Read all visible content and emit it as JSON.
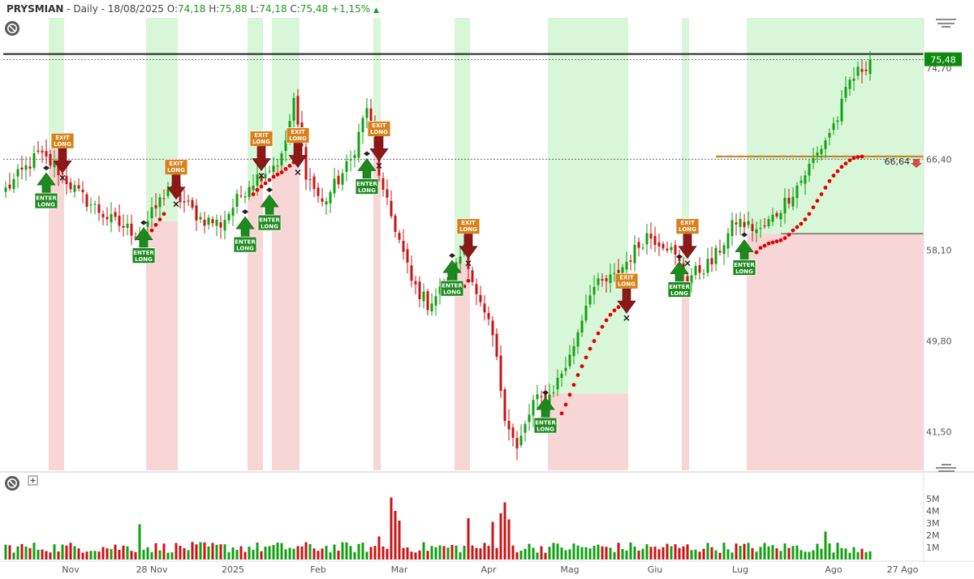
{
  "header": {
    "symbol": "PRYSMIAN",
    "timeframe": "- Daily - 18/08/2025",
    "open_label": "O:",
    "open": "74,18",
    "high_label": "H:",
    "high": "75,88",
    "low_label": "L:",
    "low": "74,18",
    "close_label": "C:",
    "close": "75,48",
    "change": "+1,15%"
  },
  "icons": {
    "main_toggle": "no-entry-icon",
    "menu": "hamburger-menu-icon",
    "pane_resize": "resize-handle-icon",
    "volume_toggle": "no-entry-icon",
    "volume_add": "plus-box-icon",
    "stop_arrow": "down-arrow-icon"
  },
  "colors": {
    "up": "#12a012",
    "down": "#c81414",
    "green_zone": "#d8f6d8",
    "red_zone": "#f9d6d6",
    "enter_long": "#1e8a1e",
    "exit_long": "#8c1818",
    "exit_label": "#d9801a",
    "stop_dot": "#e00000",
    "price_tag": "#0e8a0e"
  },
  "price_axis": {
    "ticks": [
      "74,70",
      "66,40",
      "58,10",
      "49,80",
      "41,50"
    ],
    "last_price_tag": "75,48",
    "stop_level_tag": "66,64"
  },
  "volume_axis": {
    "ticks": [
      "5M",
      "4M",
      "3M",
      "2M",
      "1M"
    ]
  },
  "time_axis": {
    "labels": [
      "Nov",
      "28 Nov",
      "2025",
      "Feb",
      "Mar",
      "Apr",
      "Mag",
      "Giu",
      "Lug",
      "Ago",
      "27 Ago"
    ]
  },
  "signals": {
    "enter_text_1": "ENTER",
    "enter_text_2": "LONG",
    "exit_text_1": "EXIT",
    "exit_text_2": "LONG"
  },
  "chart_data": {
    "type": "candlestick",
    "ylim": [
      38.0,
      79.3
    ],
    "volume_ylim": [
      0,
      6.0
    ],
    "volume_unit": "M",
    "anchors": [
      {
        "i": 0,
        "close": 63.6
      },
      {
        "i": 8,
        "close": 66.8
      },
      {
        "i": 12,
        "close": 65.8
      },
      {
        "i": 18,
        "close": 63.2
      },
      {
        "i": 26,
        "close": 60.8
      },
      {
        "i": 33,
        "close": 59.5
      },
      {
        "i": 40,
        "close": 63.8
      },
      {
        "i": 48,
        "close": 61.0
      },
      {
        "i": 53,
        "close": 60.5
      },
      {
        "i": 60,
        "close": 64.2
      },
      {
        "i": 68,
        "close": 66.5
      },
      {
        "i": 71,
        "close": 71.5
      },
      {
        "i": 74,
        "close": 65.2
      },
      {
        "i": 78,
        "close": 62.3
      },
      {
        "i": 85,
        "close": 66.2
      },
      {
        "i": 89,
        "close": 71.2
      },
      {
        "i": 93,
        "close": 63.2
      },
      {
        "i": 96,
        "close": 60.2
      },
      {
        "i": 100,
        "close": 55.2
      },
      {
        "i": 104,
        "close": 53.2
      },
      {
        "i": 110,
        "close": 55.5
      },
      {
        "i": 113,
        "close": 58.7
      },
      {
        "i": 116,
        "close": 53.8
      },
      {
        "i": 120,
        "close": 50.2
      },
      {
        "i": 123,
        "close": 43.2
      },
      {
        "i": 126,
        "close": 39.8
      },
      {
        "i": 130,
        "close": 44.2
      },
      {
        "i": 134,
        "close": 44.8
      },
      {
        "i": 139,
        "close": 48.3
      },
      {
        "i": 144,
        "close": 54.5
      },
      {
        "i": 150,
        "close": 55.6
      },
      {
        "i": 158,
        "close": 59.5
      },
      {
        "i": 163,
        "close": 58.6
      },
      {
        "i": 168,
        "close": 55.6
      },
      {
        "i": 174,
        "close": 57.0
      },
      {
        "i": 180,
        "close": 60.8
      },
      {
        "i": 186,
        "close": 59.8
      },
      {
        "i": 190,
        "close": 61.5
      },
      {
        "i": 196,
        "close": 64.5
      },
      {
        "i": 200,
        "close": 66.9
      },
      {
        "i": 205,
        "close": 70.2
      },
      {
        "i": 208,
        "close": 73.5
      },
      {
        "i": 213,
        "close": 75.48
      }
    ],
    "volume_spikes": [
      {
        "i": 33,
        "value": 2.9
      },
      {
        "i": 92,
        "value": 1.9
      },
      {
        "i": 95,
        "value": 5.1
      },
      {
        "i": 96,
        "value": 4.0
      },
      {
        "i": 97,
        "value": 3.2
      },
      {
        "i": 114,
        "value": 3.4
      },
      {
        "i": 120,
        "value": 3.1
      },
      {
        "i": 122,
        "value": 3.8
      },
      {
        "i": 123,
        "value": 4.7
      },
      {
        "i": 124,
        "value": 3.3
      },
      {
        "i": 202,
        "value": 2.3
      }
    ],
    "zones": [
      {
        "start": 11,
        "end": 14,
        "type": "short_pos"
      },
      {
        "start": 35,
        "end": 42,
        "type": "long"
      },
      {
        "start": 60,
        "end": 63,
        "type": "long"
      },
      {
        "start": 66,
        "end": 72,
        "type": "long"
      },
      {
        "start": 91,
        "end": 92,
        "type": "short_pos"
      },
      {
        "start": 111,
        "end": 114,
        "type": "long"
      },
      {
        "start": 134,
        "end": 153,
        "type": "long"
      },
      {
        "start": 167,
        "end": 168,
        "type": "long"
      },
      {
        "start": 183,
        "end": 226,
        "type": "long"
      }
    ],
    "trailing_stops": [
      [
        35,
        59.3
      ],
      [
        36,
        59.9
      ],
      [
        37,
        60.4
      ],
      [
        38,
        60.9
      ],
      [
        39,
        61.4
      ],
      [
        61,
        63.2
      ],
      [
        62,
        63.6
      ],
      [
        63,
        63.9
      ],
      [
        64,
        64.2
      ],
      [
        65,
        64.5
      ],
      [
        66,
        64.8
      ],
      [
        67,
        65.0
      ],
      [
        68,
        65.2
      ],
      [
        69,
        65.5
      ],
      [
        70,
        65.8
      ],
      [
        71,
        66.1
      ],
      [
        112,
        54.3
      ],
      [
        113,
        54.8
      ],
      [
        114,
        55.3
      ],
      [
        137,
        43.2
      ],
      [
        138,
        44.0
      ],
      [
        139,
        44.9
      ],
      [
        140,
        45.8
      ],
      [
        141,
        46.7
      ],
      [
        142,
        47.5
      ],
      [
        143,
        48.3
      ],
      [
        144,
        49.1
      ],
      [
        145,
        49.8
      ],
      [
        146,
        50.5
      ],
      [
        147,
        51.1
      ],
      [
        148,
        51.7
      ],
      [
        149,
        52.2
      ],
      [
        150,
        52.6
      ],
      [
        151,
        52.9
      ],
      [
        152,
        53.2
      ],
      [
        185,
        57.9
      ],
      [
        186,
        58.3
      ],
      [
        187,
        58.5
      ],
      [
        188,
        58.7
      ],
      [
        189,
        58.8
      ],
      [
        190,
        58.9
      ],
      [
        191,
        59.0
      ],
      [
        192,
        59.2
      ],
      [
        193,
        59.5
      ],
      [
        194,
        59.9
      ],
      [
        195,
        60.2
      ],
      [
        196,
        60.5
      ],
      [
        197,
        60.9
      ],
      [
        198,
        61.4
      ],
      [
        199,
        62.0
      ],
      [
        200,
        62.6
      ],
      [
        201,
        63.2
      ],
      [
        202,
        63.8
      ],
      [
        203,
        64.4
      ],
      [
        204,
        64.9
      ],
      [
        205,
        65.3
      ],
      [
        206,
        65.7
      ],
      [
        207,
        66.0
      ],
      [
        208,
        66.3
      ],
      [
        209,
        66.5
      ],
      [
        210,
        66.6
      ],
      [
        211,
        66.64
      ]
    ],
    "signals": [
      {
        "type": "enter",
        "i": 10,
        "y": 65.6
      },
      {
        "type": "exit",
        "i": 14,
        "y": 64.7
      },
      {
        "type": "enter",
        "i": 34,
        "y": 60.6
      },
      {
        "type": "exit",
        "i": 42,
        "y": 62.3
      },
      {
        "type": "enter",
        "i": 59,
        "y": 61.6
      },
      {
        "type": "exit",
        "i": 63,
        "y": 64.9
      },
      {
        "type": "enter",
        "i": 65,
        "y": 63.6
      },
      {
        "type": "exit",
        "i": 72,
        "y": 65.2
      },
      {
        "type": "enter",
        "i": 89,
        "y": 66.9
      },
      {
        "type": "exit",
        "i": 92,
        "y": 65.8
      },
      {
        "type": "enter",
        "i": 110,
        "y": 57.6
      },
      {
        "type": "exit",
        "i": 114,
        "y": 56.9
      },
      {
        "type": "enter",
        "i": 133,
        "y": 45.1
      },
      {
        "type": "exit",
        "i": 153,
        "y": 51.9
      },
      {
        "type": "enter",
        "i": 166,
        "y": 57.5
      },
      {
        "type": "exit",
        "i": 168,
        "y": 56.9
      },
      {
        "type": "enter",
        "i": 182,
        "y": 59.5
      }
    ],
    "reference_lines": [
      {
        "value": 76.0,
        "style": "solid"
      },
      {
        "value": 75.48,
        "style": "dotted"
      },
      {
        "value": 66.4,
        "style": "dotted"
      },
      {
        "value": 66.64,
        "style": "dashed",
        "from": 175
      },
      {
        "value": 59.6,
        "style": "solid-short",
        "from": 191
      }
    ],
    "time_label_positions": [
      {
        "i": 16
      },
      {
        "i": 36
      },
      {
        "i": 56
      },
      {
        "i": 77
      },
      {
        "i": 97
      },
      {
        "i": 119
      },
      {
        "i": 139
      },
      {
        "i": 160
      },
      {
        "i": 181
      },
      {
        "i": 204
      },
      {
        "i": 221
      }
    ]
  }
}
